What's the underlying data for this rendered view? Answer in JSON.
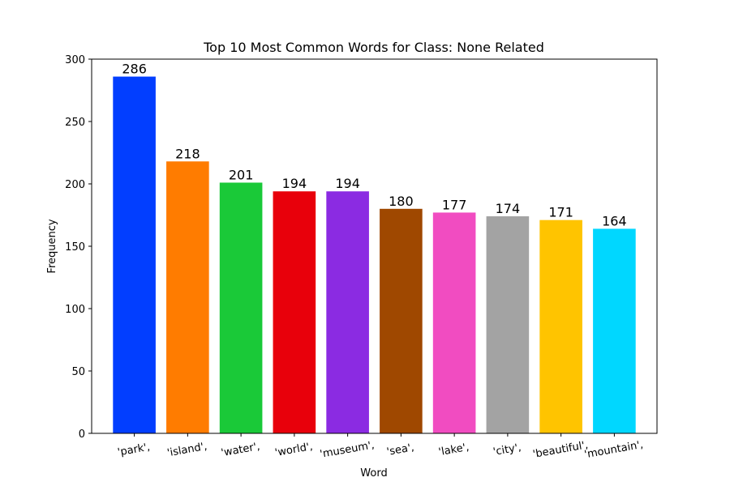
{
  "chart_data": {
    "type": "bar",
    "title": "Top 10 Most Common Words for Class: None Related",
    "xlabel": "Word",
    "ylabel": "Frequency",
    "categories": [
      "'park',",
      "'island',",
      "'water',",
      "'world',",
      "'museum',",
      "'sea',",
      "'lake',",
      "'city',",
      "'beautiful',",
      "'mountain',"
    ],
    "values": [
      286,
      218,
      201,
      194,
      194,
      180,
      177,
      174,
      171,
      164
    ],
    "colors": [
      "#023eff",
      "#ff7c00",
      "#1ac938",
      "#e8000b",
      "#8b2be2",
      "#9f4800",
      "#f14cc1",
      "#a3a3a3",
      "#ffc400",
      "#00d7ff"
    ],
    "ylim": [
      0,
      300
    ],
    "yticks": [
      0,
      50,
      100,
      150,
      200,
      250,
      300
    ],
    "grid": false,
    "legend": "none"
  }
}
